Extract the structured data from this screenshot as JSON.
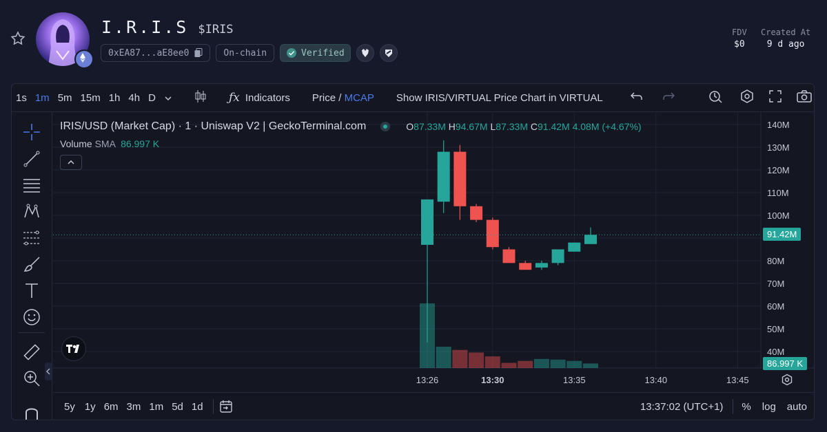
{
  "header": {
    "title": "I.R.I.S",
    "ticker": "$IRIS",
    "address": "0xEA87...aE8ee0",
    "chain_chip": "On-chain",
    "verified": "Verified",
    "fdv_label": "FDV",
    "fdv_value": "$0",
    "created_label": "Created At",
    "created_value": "9 d ago"
  },
  "toolbar": {
    "intervals": [
      "1s",
      "1m",
      "5m",
      "15m",
      "1h",
      "4h",
      "D"
    ],
    "active_interval": "1m",
    "indicators": "Indicators",
    "price": "Price",
    "slash": " / ",
    "mcap": "MCAP",
    "show_chart": "Show IRIS/VIRTUAL Price Chart in VIRTUAL"
  },
  "legend": {
    "symbol": "IRIS/USD (Market Cap) · 1 · Uniswap V2 | GeckoTerminal.com",
    "o_label": "O",
    "o": "87.33M",
    "h_label": "H",
    "h": "94.67M",
    "l_label": "L",
    "l": "87.33M",
    "c_label": "C",
    "c": "91.42M",
    "change": "4.08M (+4.67%)",
    "volume_label": "Volume",
    "sma_label": "SMA",
    "volume_value": "86.997 K"
  },
  "bottom": {
    "ranges": [
      "5y",
      "1y",
      "6m",
      "3m",
      "1m",
      "5d",
      "1d"
    ],
    "time": "13:37:02 (UTC+1)",
    "percent": "%",
    "log": "log",
    "auto": "auto"
  },
  "chart_data": {
    "type": "candlestick",
    "y_ticks": [
      "140M",
      "130M",
      "120M",
      "110M",
      "100M",
      "80M",
      "70M",
      "60M",
      "50M",
      "40M"
    ],
    "x_ticks": [
      "13:26",
      "13:30",
      "13:35",
      "13:40",
      "13:45"
    ],
    "last_price_label": "91.42M",
    "volume_label": "86.997 K",
    "ylim": [
      35,
      143
    ],
    "candles": [
      {
        "t": "13:26",
        "o": 87,
        "h": 107,
        "l": 44,
        "c": 107
      },
      {
        "t": "13:27",
        "o": 106,
        "h": 133,
        "l": 101,
        "c": 128
      },
      {
        "t": "13:28",
        "o": 128,
        "h": 131,
        "l": 98,
        "c": 104
      },
      {
        "t": "13:29",
        "o": 104,
        "h": 105,
        "l": 97,
        "c": 98
      },
      {
        "t": "13:30",
        "o": 98,
        "h": 99,
        "l": 85,
        "c": 86
      },
      {
        "t": "13:31",
        "o": 85,
        "h": 86,
        "l": 79,
        "c": 79
      },
      {
        "t": "13:32",
        "o": 79,
        "h": 80,
        "l": 76,
        "c": 76
      },
      {
        "t": "13:33",
        "o": 77,
        "h": 80,
        "l": 76,
        "c": 79
      },
      {
        "t": "13:34",
        "o": 79,
        "h": 85,
        "l": 78,
        "c": 85
      },
      {
        "t": "13:35",
        "o": 84,
        "h": 88,
        "l": 84,
        "c": 88
      },
      {
        "t": "13:36",
        "o": 87.33,
        "h": 94.67,
        "l": 87.33,
        "c": 91.42
      }
    ],
    "volume_rel": [
      1.0,
      0.33,
      0.28,
      0.24,
      0.18,
      0.08,
      0.11,
      0.14,
      0.13,
      0.11,
      0.07
    ]
  },
  "colors": {
    "up": "#26a69a",
    "down": "#ef5350",
    "accent": "#4b79e8"
  }
}
